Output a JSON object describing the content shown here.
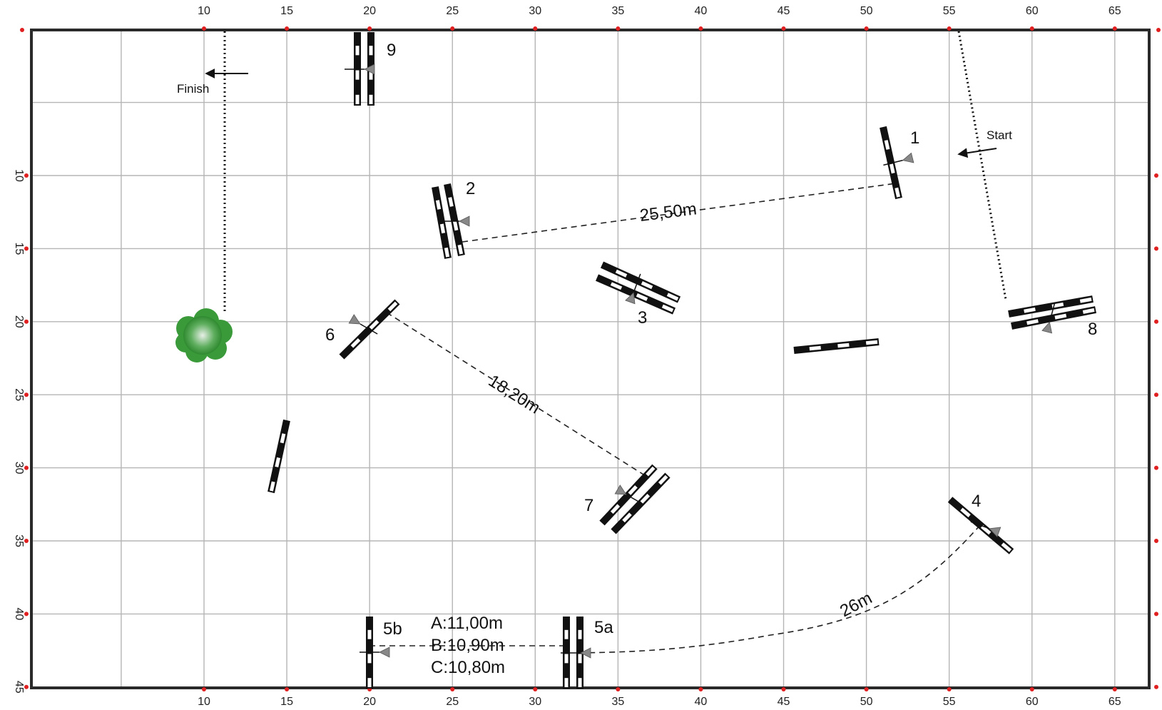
{
  "axes": {
    "x_ticks": [
      "10",
      "15",
      "20",
      "25",
      "30",
      "35",
      "40",
      "45",
      "50",
      "55",
      "60",
      "65"
    ],
    "y_ticks": [
      "10",
      "15",
      "20",
      "25",
      "30",
      "35",
      "40",
      "45"
    ]
  },
  "labels": {
    "start": "Start",
    "finish": "Finish"
  },
  "obstacles": {
    "o1": "1",
    "o2": "2",
    "o3": "3",
    "o4": "4",
    "o5a": "5a",
    "o5b": "5b",
    "o6": "6",
    "o7": "7",
    "o8": "8",
    "o9": "9"
  },
  "distances": {
    "d12": "25,50m",
    "d67": "18,20m",
    "d45": "26m",
    "combo_a": "A:11,00m",
    "combo_b": "B:10,90m",
    "combo_c": "C:10,80m"
  },
  "colors": {
    "grid": "#b5b5b5",
    "frame": "#2a2a2a",
    "rail": "#111111",
    "tick_dot": "#e02020",
    "tree": "#3a9a3a"
  }
}
